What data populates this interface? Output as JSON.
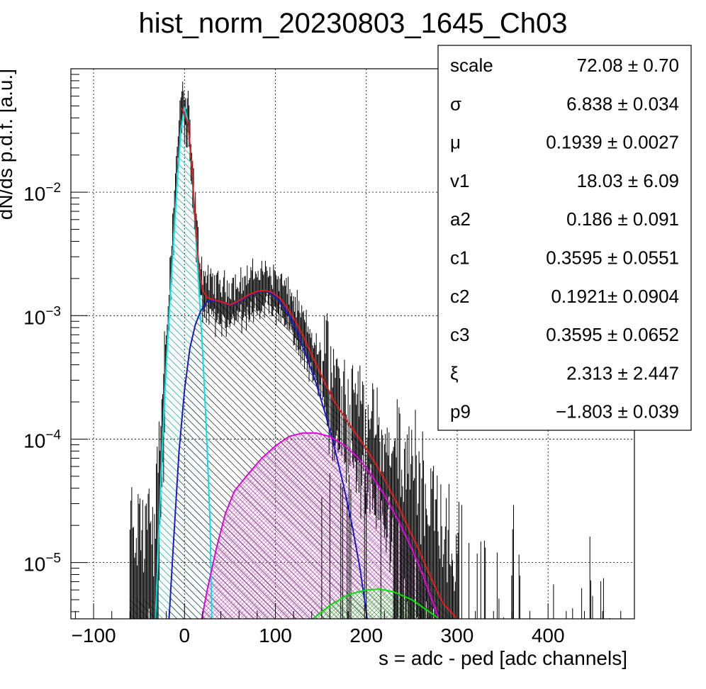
{
  "chart_data": {
    "type": "line",
    "title": "hist_norm_20230803_1645_Ch03",
    "xlabel": "s = adc - ped [adc channels]",
    "ylabel": "dN/ds p.d.f. [a.u.]",
    "xlim": [
      -125,
      495
    ],
    "ylim": [
      3.5e-06,
      0.1
    ],
    "log_y": true,
    "grid": true,
    "x_ticks": [
      {
        "value": -100,
        "label": "−100"
      },
      {
        "value": 0,
        "label": "0"
      },
      {
        "value": 100,
        "label": "100"
      },
      {
        "value": 200,
        "label": "200"
      },
      {
        "value": 300,
        "label": "300"
      },
      {
        "value": 400,
        "label": "400"
      }
    ],
    "y_ticks": [
      {
        "value": 0.01,
        "base": "10",
        "exp": "−2"
      },
      {
        "value": 0.001,
        "base": "10",
        "exp": "−3"
      },
      {
        "value": 0.0001,
        "base": "10",
        "exp": "−4"
      },
      {
        "value": 1e-05,
        "base": "10",
        "exp": "−5"
      }
    ],
    "stats": [
      {
        "name": "scale",
        "value": "72.08 ± 0.70"
      },
      {
        "name": "σ",
        "value": "6.838 ± 0.034"
      },
      {
        "name": "μ",
        "value": "0.1939 ± 0.0027"
      },
      {
        "name": "v1",
        "value": "18.03 ± 6.09"
      },
      {
        "name": "a2",
        "value": "0.186 ± 0.091"
      },
      {
        "name": "c1",
        "value": "0.3595 ± 0.0551"
      },
      {
        "name": "c2",
        "value": "0.1921± 0.0904"
      },
      {
        "name": "c3",
        "value": "0.3595 ± 0.0652"
      },
      {
        "name": "ξ",
        "value": "2.313 ± 2.447"
      },
      {
        "name": "p9",
        "value": "−1.803 ± 0.039"
      }
    ],
    "series": [
      {
        "color": "#00e5e5",
        "hatch": "cyan-hatch",
        "points": [
          [
            -32,
            3.5e-06
          ],
          [
            -28,
            2e-05
          ],
          [
            -24,
            0.0001
          ],
          [
            -20,
            0.0004
          ],
          [
            -16,
            0.0013
          ],
          [
            -12,
            0.004
          ],
          [
            -8,
            0.012
          ],
          [
            -4,
            0.032
          ],
          [
            0,
            0.049
          ],
          [
            4,
            0.036
          ],
          [
            8,
            0.016
          ],
          [
            12,
            0.005
          ],
          [
            16,
            0.0016
          ],
          [
            20,
            0.0005
          ],
          [
            24,
            0.00012
          ],
          [
            28,
            2.2e-05
          ],
          [
            30,
            3.5e-06
          ]
        ]
      },
      {
        "color": "#1a1acc",
        "hatch": "black-hatch",
        "points": [
          [
            -17,
            3.5e-06
          ],
          [
            -12,
            1.5e-05
          ],
          [
            -6,
            8e-05
          ],
          [
            0,
            0.00025
          ],
          [
            6,
            0.00055
          ],
          [
            12,
            0.00085
          ],
          [
            18,
            0.0011
          ],
          [
            25,
            0.0013
          ],
          [
            32,
            0.00132
          ],
          [
            40,
            0.0013
          ],
          [
            50,
            0.0012
          ],
          [
            60,
            0.0013
          ],
          [
            70,
            0.00145
          ],
          [
            80,
            0.00155
          ],
          [
            88,
            0.00158
          ],
          [
            96,
            0.0015
          ],
          [
            105,
            0.0013
          ],
          [
            115,
            0.001
          ],
          [
            125,
            0.0007
          ],
          [
            135,
            0.00045
          ],
          [
            145,
            0.00028
          ],
          [
            155,
            0.00016
          ],
          [
            165,
            8.5e-05
          ],
          [
            175,
            4.2e-05
          ],
          [
            185,
            1.9e-05
          ],
          [
            193,
            9e-06
          ],
          [
            198,
            5e-06
          ],
          [
            201,
            3.5e-06
          ]
        ]
      },
      {
        "color": "#e500e5",
        "hatch": "magenta-hatch",
        "points": [
          [
            19,
            3.5e-06
          ],
          [
            25,
            6e-06
          ],
          [
            35,
            1.3e-05
          ],
          [
            45,
            2.5e-05
          ],
          [
            55,
            3.8e-05
          ],
          [
            70,
            5.2e-05
          ],
          [
            85,
            7e-05
          ],
          [
            100,
            8.8e-05
          ],
          [
            115,
            0.000105
          ],
          [
            130,
            0.000112
          ],
          [
            145,
            0.000112
          ],
          [
            160,
            0.000105
          ],
          [
            175,
            9e-05
          ],
          [
            190,
            7.2e-05
          ],
          [
            205,
            5.2e-05
          ],
          [
            220,
            3.5e-05
          ],
          [
            235,
            2.2e-05
          ],
          [
            250,
            1.3e-05
          ],
          [
            262,
            8e-06
          ],
          [
            272,
            5e-06
          ],
          [
            280,
            3.5e-06
          ]
        ]
      },
      {
        "color": "#00e500",
        "hatch": "green-hatch",
        "points": [
          [
            141,
            3.5e-06
          ],
          [
            160,
            4.5e-06
          ],
          [
            180,
            5.5e-06
          ],
          [
            200,
            6e-06
          ],
          [
            215,
            6.1e-06
          ],
          [
            230,
            5.8e-06
          ],
          [
            250,
            5e-06
          ],
          [
            265,
            4.2e-06
          ],
          [
            280,
            3.5e-06
          ]
        ]
      },
      {
        "color": "#e51a1a",
        "points": [
          [
            -3,
            0.048
          ],
          [
            4,
            0.036
          ],
          [
            8,
            0.016
          ],
          [
            12,
            0.0055
          ],
          [
            16,
            0.0024
          ],
          [
            20,
            0.0016
          ],
          [
            25,
            0.0014
          ],
          [
            32,
            0.00134
          ],
          [
            40,
            0.0013
          ],
          [
            50,
            0.00122
          ],
          [
            60,
            0.00132
          ],
          [
            70,
            0.00147
          ],
          [
            80,
            0.00157
          ],
          [
            88,
            0.0016
          ],
          [
            96,
            0.00155
          ],
          [
            105,
            0.00138
          ],
          [
            115,
            0.0011
          ],
          [
            125,
            0.00082
          ],
          [
            135,
            0.00058
          ],
          [
            145,
            0.0004
          ],
          [
            155,
            0.00028
          ],
          [
            165,
            0.0002
          ],
          [
            175,
            0.000155
          ],
          [
            185,
            0.00012
          ],
          [
            195,
            9.5e-05
          ],
          [
            205,
            7.3e-05
          ],
          [
            215,
            5.5e-05
          ],
          [
            225,
            4e-05
          ],
          [
            235,
            2.9e-05
          ],
          [
            245,
            2e-05
          ],
          [
            255,
            1.4e-05
          ],
          [
            265,
            9.5e-06
          ],
          [
            275,
            6.5e-06
          ],
          [
            285,
            4.6e-06
          ],
          [
            300,
            3.5e-06
          ]
        ]
      }
    ]
  }
}
